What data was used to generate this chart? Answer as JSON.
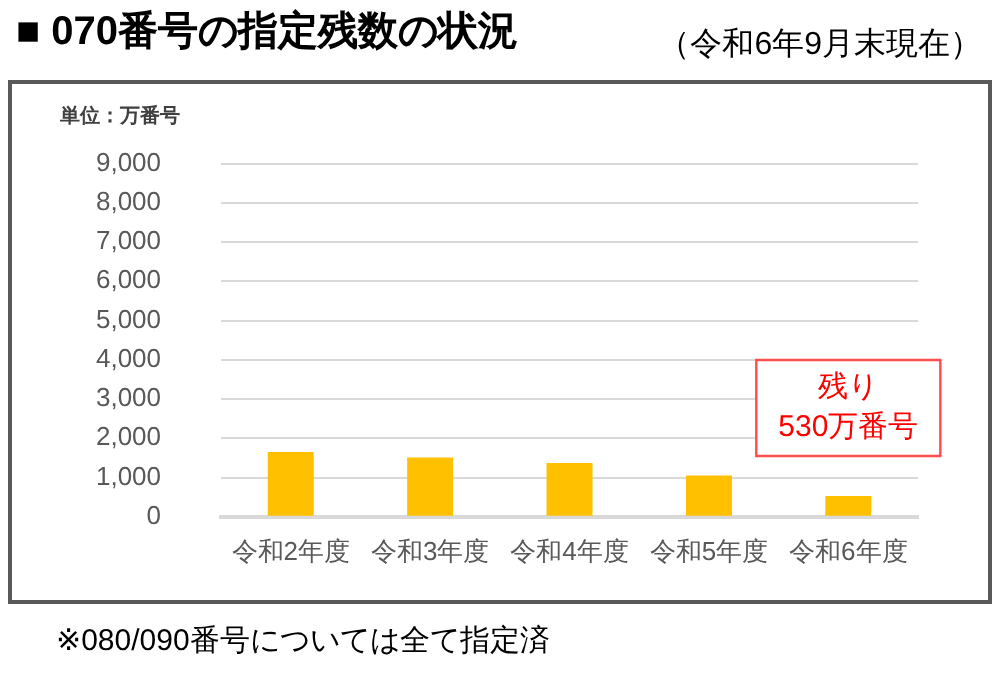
{
  "chart_data": {
    "type": "bar",
    "title": "■ 070番号の指定残数の状況",
    "subtitle": "（令和6年9月末現在）",
    "ylabel": "単位：万番号",
    "categories": [
      "令和2年度",
      "令和3年度",
      "令和4年度",
      "令和5年度",
      "令和6年度"
    ],
    "values": [
      1650,
      1510,
      1370,
      1050,
      530
    ],
    "color": "#ffc000",
    "ylim": [
      0,
      9000
    ],
    "yticks": [
      {
        "value": 0,
        "label": "0"
      },
      {
        "value": 1000,
        "label": "1,000"
      },
      {
        "value": 2000,
        "label": "2,000"
      },
      {
        "value": 3000,
        "label": "3,000"
      },
      {
        "value": 4000,
        "label": "4,000"
      },
      {
        "value": 5000,
        "label": "5,000"
      },
      {
        "value": 6000,
        "label": "6,000"
      },
      {
        "value": 7000,
        "label": "7,000"
      },
      {
        "value": 8000,
        "label": "8,000"
      },
      {
        "value": 9000,
        "label": "9,000"
      }
    ],
    "grid": "y",
    "legend": false,
    "annotations": [
      {
        "text": "残り\n530万番号",
        "x": "令和6年度",
        "y": 530
      },
      "※080/090番号については全て指定済"
    ]
  }
}
